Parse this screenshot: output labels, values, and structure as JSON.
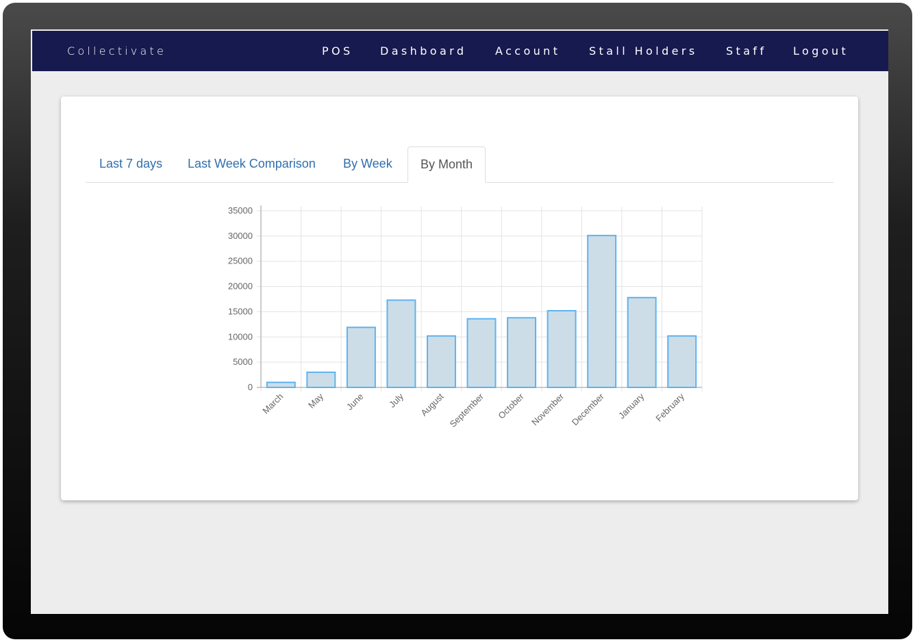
{
  "navbar": {
    "brand": "Collectivate",
    "links": [
      "POS",
      "Dashboard",
      "Account",
      "Stall Holders",
      "Staff",
      "Logout"
    ]
  },
  "tabs": [
    {
      "label": "Last 7 days",
      "active": false
    },
    {
      "label": "Last Week Comparison",
      "active": false
    },
    {
      "label": "By Week",
      "active": false
    },
    {
      "label": "By Month",
      "active": true
    }
  ],
  "colors": {
    "navbar_bg": "#171a4f",
    "tab_link": "#2f6fad",
    "bar_fill": "#ccdde8",
    "bar_border": "#5db3f0"
  },
  "chart_data": {
    "type": "bar",
    "categories": [
      "March",
      "May",
      "June",
      "July",
      "August",
      "September",
      "October",
      "November",
      "December",
      "January",
      "February"
    ],
    "values": [
      1000,
      3000,
      11900,
      17300,
      10200,
      13600,
      13800,
      15200,
      30100,
      17800,
      10200
    ],
    "ylim": [
      0,
      35000
    ],
    "yticks": [
      0,
      5000,
      10000,
      15000,
      20000,
      25000,
      30000,
      35000
    ],
    "grid": true,
    "legend": "none"
  }
}
